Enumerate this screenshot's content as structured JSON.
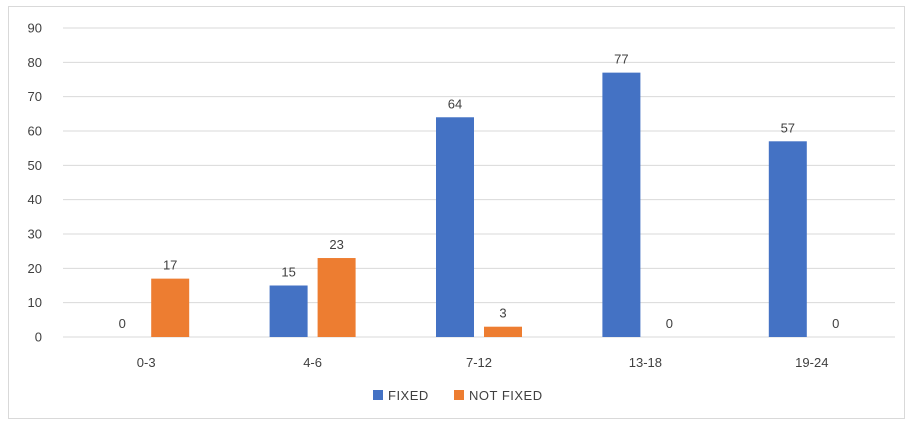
{
  "chart_data": {
    "type": "bar",
    "title": "",
    "xlabel": "",
    "ylabel": "",
    "categories": [
      "0-3",
      "4-6",
      "7-12",
      "13-18",
      "19-24"
    ],
    "series": [
      {
        "name": "FIXED",
        "values": [
          0,
          15,
          64,
          77,
          57
        ],
        "color": "#4472C4"
      },
      {
        "name": "NOT FIXED",
        "values": [
          17,
          23,
          3,
          0,
          0
        ],
        "color": "#ED7D31"
      }
    ],
    "ylim": [
      0,
      90
    ],
    "yticks": [
      0,
      10,
      20,
      30,
      40,
      50,
      60,
      70,
      80,
      90
    ],
    "grid": true,
    "data_labels": true,
    "legend_position": "bottom"
  }
}
